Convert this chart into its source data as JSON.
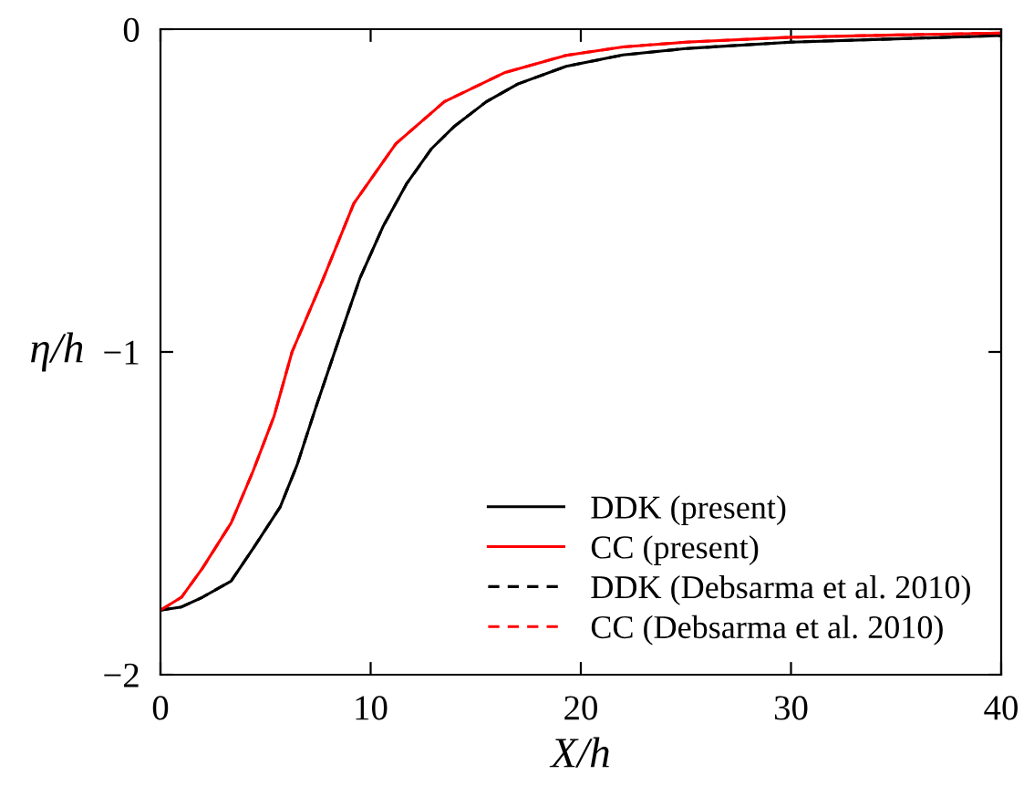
{
  "chart_data": {
    "type": "line",
    "xlabel": "X/h",
    "ylabel": "η/h",
    "xlim": [
      0,
      40
    ],
    "ylim": [
      -2,
      0
    ],
    "xticks": [
      0,
      10,
      20,
      30,
      40
    ],
    "yticks": [
      {
        "value": -2,
        "label": "−2"
      },
      {
        "value": -1,
        "label": "−1"
      },
      0
    ],
    "grid": false,
    "legend": "bottom right",
    "marker": "none",
    "series": [
      {
        "name": "DDK (present)",
        "color": "#000000",
        "line_style": "solid",
        "x": [
          0,
          1,
          2,
          3.36,
          4.5,
          5.7,
          6.5,
          7.4,
          8.6,
          9.5,
          10.6,
          11.7,
          12.9,
          14,
          15.5,
          17,
          19.3,
          22,
          25,
          30,
          35,
          40
        ],
        "values": [
          -1.8,
          -1.79,
          -1.76,
          -1.71,
          -1.6,
          -1.48,
          -1.35,
          -1.17,
          -0.94,
          -0.77,
          -0.61,
          -0.48,
          -0.37,
          -0.3,
          -0.225,
          -0.17,
          -0.115,
          -0.08,
          -0.06,
          -0.04,
          -0.03,
          -0.02
        ]
      },
      {
        "name": "CC (present)",
        "color": "#ff0000",
        "line_style": "solid",
        "x": [
          0,
          1,
          2,
          3.36,
          4.4,
          5.4,
          6.26,
          7.7,
          9.2,
          11.2,
          13.5,
          16.4,
          19.3,
          22,
          25,
          30,
          35,
          40
        ],
        "values": [
          -1.8,
          -1.76,
          -1.67,
          -1.53,
          -1.37,
          -1.2,
          -1.0,
          -0.78,
          -0.54,
          -0.355,
          -0.225,
          -0.134,
          -0.081,
          -0.055,
          -0.04,
          -0.025,
          -0.018,
          -0.012
        ]
      },
      {
        "name": "DDK (Debsarma et al. 2010)",
        "color": "#000000",
        "line_style": "dashed",
        "x": [
          0,
          1,
          2,
          3.36,
          4.5,
          5.7,
          6.5,
          7.4,
          8.6,
          9.5,
          10.6,
          11.7,
          12.9,
          14,
          15.5,
          17,
          19.3,
          22,
          25,
          30,
          35,
          40
        ],
        "values": [
          -1.8,
          -1.79,
          -1.76,
          -1.71,
          -1.6,
          -1.48,
          -1.35,
          -1.17,
          -0.94,
          -0.77,
          -0.61,
          -0.48,
          -0.37,
          -0.3,
          -0.225,
          -0.17,
          -0.115,
          -0.08,
          -0.06,
          -0.04,
          -0.03,
          -0.02
        ]
      },
      {
        "name": "CC (Debsarma et al. 2010)",
        "color": "#ff0000",
        "line_style": "dashed",
        "x": [
          0,
          1,
          2,
          3.36,
          4.4,
          5.4,
          6.26,
          7.7,
          9.2,
          11.2,
          13.5,
          16.4,
          19.3,
          22,
          25,
          30,
          35,
          40
        ],
        "values": [
          -1.8,
          -1.76,
          -1.67,
          -1.53,
          -1.37,
          -1.2,
          -1.0,
          -0.78,
          -0.54,
          -0.355,
          -0.225,
          -0.134,
          -0.081,
          -0.055,
          -0.04,
          -0.025,
          -0.018,
          -0.012
        ]
      }
    ]
  }
}
